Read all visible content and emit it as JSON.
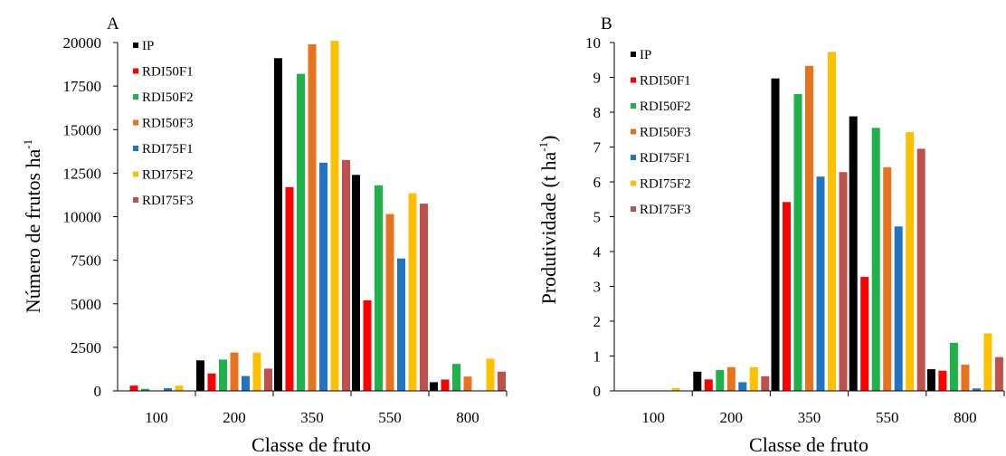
{
  "chart_data": [
    {
      "type": "bar",
      "panel_label": "A",
      "xlabel": "Classe de fruto",
      "ylabel_main": "Número de frutos ha",
      "ylabel_sup": "-1",
      "categories": [
        "100",
        "200",
        "350",
        "550",
        "800"
      ],
      "ylim": [
        0,
        20000
      ],
      "yticks": [
        "0",
        "2500",
        "5000",
        "7500",
        "10000",
        "12500",
        "15000",
        "17500",
        "20000"
      ],
      "grid": false,
      "legend_position": "top-left",
      "series": [
        {
          "name": "IP",
          "color": "#000000",
          "values": [
            0,
            1750,
            19100,
            12400,
            500
          ]
        },
        {
          "name": "RDI50F1",
          "color": "#ff0000",
          "values": [
            300,
            1000,
            11700,
            5200,
            650
          ]
        },
        {
          "name": "RDI50F2",
          "color": "#1fb24a",
          "values": [
            120,
            1800,
            18200,
            11800,
            1550
          ]
        },
        {
          "name": "RDI50F3",
          "color": "#e8731f",
          "values": [
            0,
            2200,
            19900,
            10150,
            820
          ]
        },
        {
          "name": "RDI75F1",
          "color": "#1f74c4",
          "values": [
            150,
            850,
            13100,
            7600,
            0
          ]
        },
        {
          "name": "RDI75F2",
          "color": "#ffc000",
          "values": [
            300,
            2200,
            20100,
            11350,
            1850
          ]
        },
        {
          "name": "RDI75F3",
          "color": "#c0504d",
          "values": [
            0,
            1280,
            13250,
            10750,
            1100
          ]
        }
      ]
    },
    {
      "type": "bar",
      "panel_label": "B",
      "xlabel": "Classe de fruto",
      "ylabel_main": "Produtividade (t ha",
      "ylabel_sup": "-1",
      "ylabel_end": ")",
      "categories": [
        "100",
        "200",
        "350",
        "550",
        "800"
      ],
      "ylim": [
        0,
        10
      ],
      "yticks": [
        "0",
        "1",
        "2",
        "3",
        "4",
        "5",
        "6",
        "7",
        "8",
        "9",
        "10"
      ],
      "grid": false,
      "legend_position": "top-left",
      "series": [
        {
          "name": "IP",
          "color": "#000000",
          "values": [
            0,
            0.55,
            8.97,
            7.88,
            0.62
          ]
        },
        {
          "name": "RDI50F1",
          "color": "#ff0000",
          "values": [
            0,
            0.33,
            5.42,
            3.27,
            0.58
          ]
        },
        {
          "name": "RDI50F2",
          "color": "#1fb24a",
          "values": [
            0,
            0.6,
            8.52,
            7.55,
            1.38
          ]
        },
        {
          "name": "RDI50F3",
          "color": "#e8731f",
          "values": [
            0,
            0.68,
            9.33,
            6.42,
            0.75
          ]
        },
        {
          "name": "RDI75F1",
          "color": "#1f74c4",
          "values": [
            0,
            0.25,
            6.15,
            4.72,
            0.07
          ]
        },
        {
          "name": "RDI75F2",
          "color": "#ffc000",
          "values": [
            0.08,
            0.68,
            9.73,
            7.43,
            1.65
          ]
        },
        {
          "name": "RDI75F3",
          "color": "#c0504d",
          "values": [
            0,
            0.42,
            6.28,
            6.95,
            0.97
          ]
        }
      ]
    }
  ]
}
